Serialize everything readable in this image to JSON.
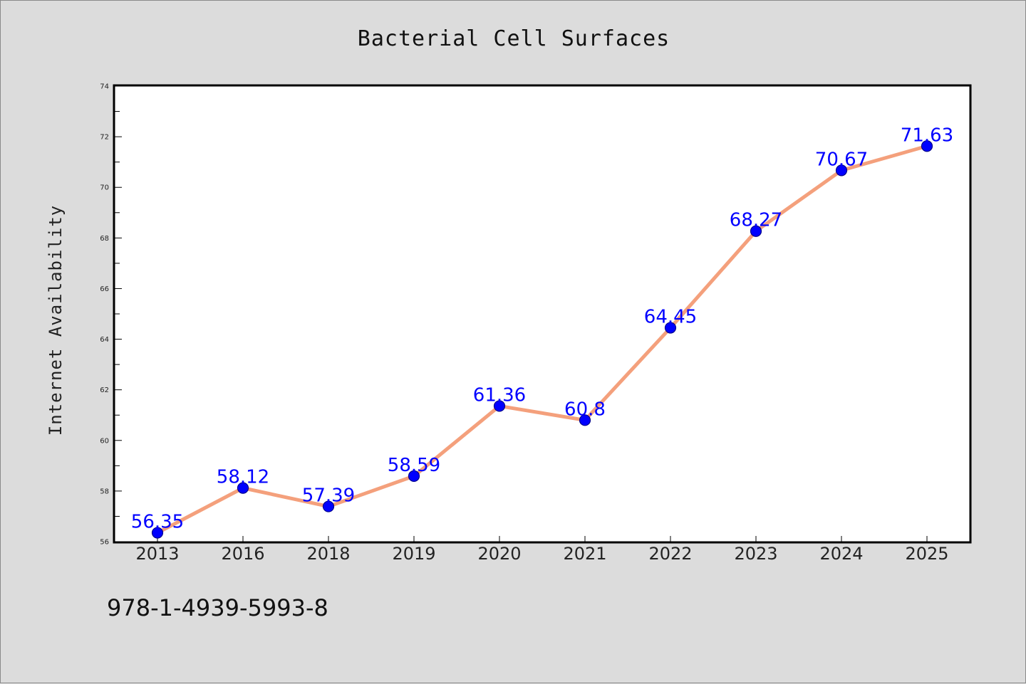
{
  "chart_data": {
    "type": "line",
    "title": "Bacterial Cell Surfaces",
    "xlabel": "",
    "ylabel": "Internet Availability",
    "categories": [
      "2013",
      "2016",
      "2018",
      "2019",
      "2020",
      "2021",
      "2022",
      "2023",
      "2024",
      "2025"
    ],
    "series": [
      {
        "values": [
          56.35,
          58.12,
          57.39,
          58.59,
          61.36,
          60.8,
          64.45,
          68.27,
          70.67,
          71.63
        ],
        "data_labels": [
          "56.35",
          "58.12",
          "57.39",
          "58.59",
          "61.36",
          "60.8",
          "64.45",
          "68.27",
          "70.67",
          "71.63"
        ]
      }
    ],
    "ylim": [
      56,
      74
    ],
    "yticks": [
      "56",
      "58",
      "60",
      "62",
      "64",
      "66",
      "68",
      "70",
      "72",
      "74"
    ],
    "grid": false,
    "legend": "none",
    "colors": {
      "line": "#f4a07c",
      "marker": "#0000ff",
      "marker_edge": "#00008b",
      "data_label": "#0000ff",
      "page_background": "#dcdcdc",
      "plot_background": "#ffffff"
    }
  },
  "footer": {
    "isbn": "978-1-4939-5993-8"
  }
}
